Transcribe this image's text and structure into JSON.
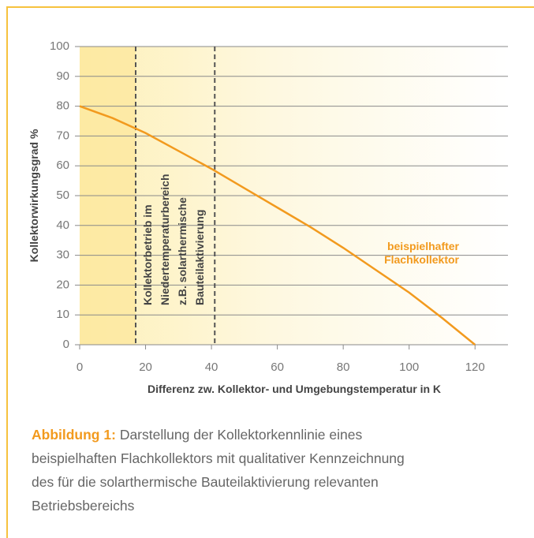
{
  "chart_data": {
    "type": "line",
    "x_label": "Differenz zw. Kollektor- und Umgebungstemperatur in K",
    "y_label": "Kollektorwirkungsgrad %",
    "x": [
      0,
      10,
      20,
      30,
      40,
      50,
      60,
      70,
      80,
      90,
      100,
      110,
      120
    ],
    "series": [
      {
        "name": "beispielhafter Flachkollektor",
        "color": "#f29a1e",
        "values": [
          80,
          76,
          71,
          65,
          59,
          52.5,
          46,
          39.5,
          32.5,
          25,
          17.5,
          9,
          0
        ]
      }
    ],
    "xlim": [
      0,
      130
    ],
    "xticks": [
      0,
      20,
      40,
      60,
      80,
      100,
      120
    ],
    "ylim": [
      0,
      100
    ],
    "yticks": [
      0,
      10,
      20,
      30,
      40,
      50,
      60,
      70,
      80,
      90,
      100
    ],
    "grid": true,
    "vlines": [
      17,
      41
    ],
    "annotation_lines": [
      "Kollektorbetrieb im",
      "Niedertemperaturbereich",
      "z.B. solarthermische",
      "Bauteilaktivierung"
    ]
  },
  "caption": {
    "label": "Abbildung 1:",
    "lines": [
      "Darstellung der Kollektorkennlinie eines",
      "beispielhaften Flachkollektors mit qualitativer Kennzeichnung",
      "des für die solarthermische Bauteilaktivierung relevanten",
      "Betriebsbereichs"
    ]
  }
}
